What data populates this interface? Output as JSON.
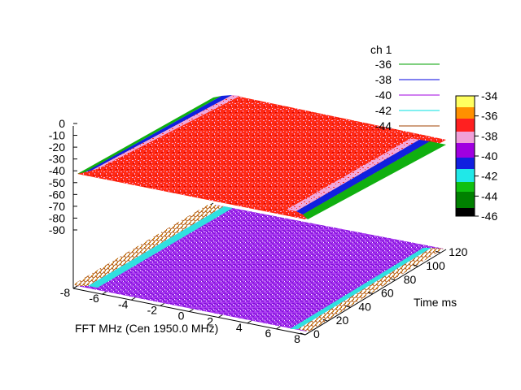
{
  "chart_data": {
    "type": "surface3d",
    "title": "",
    "xlabel": "FFT MHz (Cen 1950.0 MHz)",
    "ylabel": "Time ms",
    "zlabel": "",
    "x_ticks": [
      "-8",
      "-6",
      "-4",
      "-2",
      "0",
      "2",
      "4",
      "6",
      "8"
    ],
    "x_range": [
      -8,
      8
    ],
    "y_ticks": [
      "0",
      "20",
      "40",
      "60",
      "80",
      "100",
      "120"
    ],
    "y_range": [
      0,
      125
    ],
    "z_ticks": [
      "0",
      "-10",
      "-20",
      "-30",
      "-40",
      "-50",
      "-60",
      "-70",
      "-80",
      "-90"
    ],
    "z_range": [
      -90,
      0
    ],
    "surface_level_db": -38,
    "surface_edge_level_db": -44,
    "legend": {
      "title": "ch 1",
      "placement": "top-right",
      "entries": [
        {
          "label": "-36",
          "color": "#00a000"
        },
        {
          "label": "-38",
          "color": "#0000e0"
        },
        {
          "label": "-40",
          "color": "#a000e0"
        },
        {
          "label": "-42",
          "color": "#00e0e0"
        },
        {
          "label": "-44",
          "color": "#a04000"
        }
      ]
    },
    "colorbox": {
      "ticks": [
        "-34",
        "-36",
        "-38",
        "-40",
        "-42",
        "-44",
        "-46"
      ],
      "range": [
        -46,
        -34
      ]
    },
    "colors": {
      "surface_red": "#ff2010",
      "surface_pink": "#f0a0d8",
      "blue": "#1020e0",
      "green": "#10b010",
      "contour_purple": "#a000f0",
      "contour_cyan": "#30e0e0",
      "contour_brown": "#b05000",
      "contour_orange": "#e0a000"
    }
  }
}
